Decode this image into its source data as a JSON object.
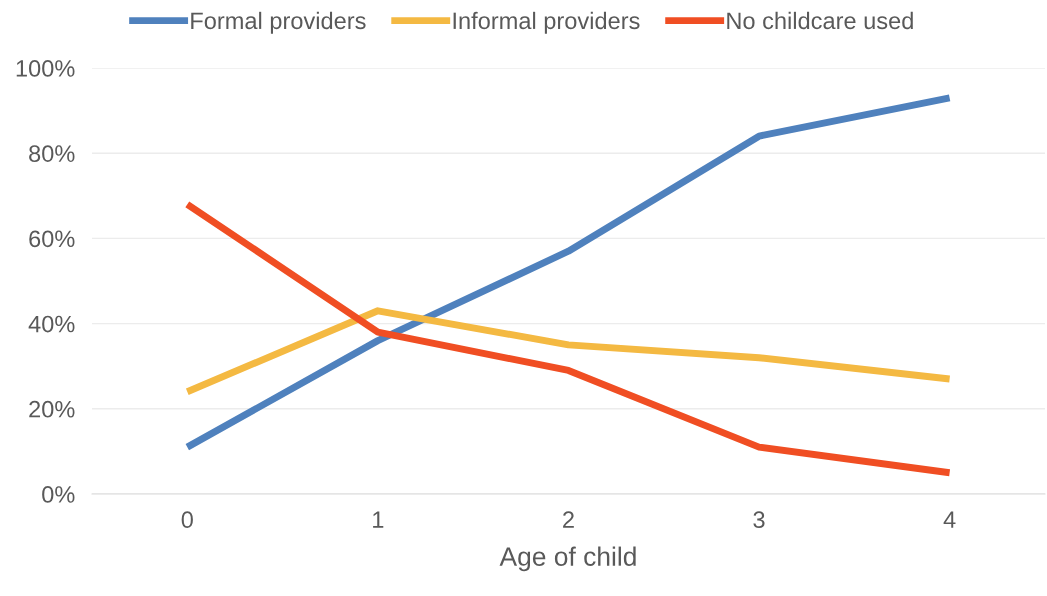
{
  "chart_data": {
    "type": "line",
    "xlabel": "Age of child",
    "categories": [
      "0",
      "1",
      "2",
      "3",
      "4"
    ],
    "series": [
      {
        "name": "Formal providers",
        "color": "#4f81bd",
        "values": [
          11,
          36,
          57,
          84,
          93
        ]
      },
      {
        "name": "Informal providers",
        "color": "#f4b942",
        "values": [
          24,
          43,
          35,
          32,
          27
        ]
      },
      {
        "name": "No childcare used",
        "color": "#f04e23",
        "values": [
          68,
          38,
          29,
          11,
          5
        ]
      }
    ],
    "ylim": [
      0,
      100
    ],
    "yticks": [
      {
        "value": 0,
        "label": "0%"
      },
      {
        "value": 20,
        "label": "20%"
      },
      {
        "value": 40,
        "label": "40%"
      },
      {
        "value": 60,
        "label": "60%"
      },
      {
        "value": 80,
        "label": "80%"
      },
      {
        "value": 100,
        "label": "100%"
      }
    ],
    "grid": "y",
    "legend": "top",
    "marker": "none",
    "line_style": "solid"
  }
}
